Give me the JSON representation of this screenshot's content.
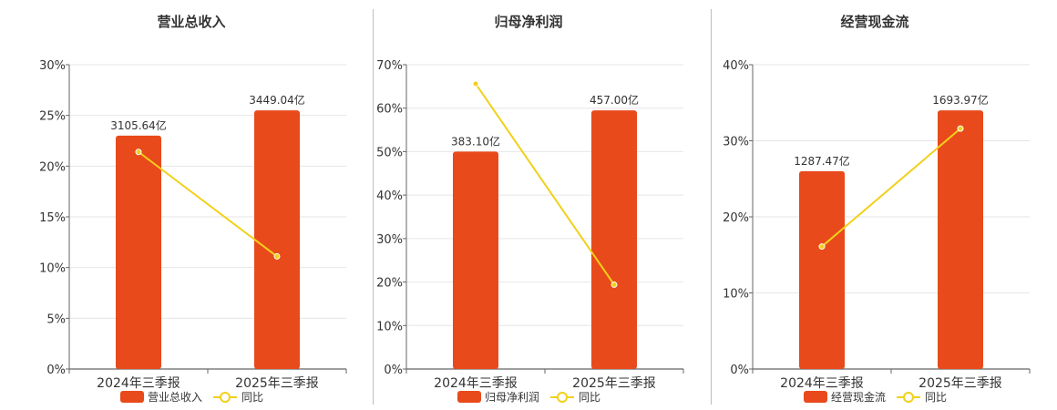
{
  "colors": {
    "bar": "#e84a1b",
    "line": "#f2d01a",
    "grid": "#e6e6e6",
    "axis": "#666666",
    "text": "#333333"
  },
  "chart_data": [
    {
      "type": "bar",
      "title": "营业总收入",
      "categories": [
        "2024年三季报",
        "2025年三季报"
      ],
      "ylim": [
        0,
        30
      ],
      "yticks": [
        "0%",
        "5%",
        "10%",
        "15%",
        "20%",
        "25%",
        "30%"
      ],
      "yvalues": [
        0,
        5,
        10,
        15,
        20,
        25,
        30
      ],
      "series": [
        {
          "name": "营业总收入",
          "type": "bar",
          "values": [
            23,
            25.5
          ],
          "labels": [
            "3105.64亿",
            "3449.04亿"
          ]
        },
        {
          "name": "同比",
          "type": "line",
          "values": [
            21.4,
            11.1
          ]
        }
      ],
      "grid": true,
      "legend": "bottom"
    },
    {
      "type": "bar",
      "title": "归母净利润",
      "categories": [
        "2024年三季报",
        "2025年三季报"
      ],
      "ylim": [
        0,
        70
      ],
      "yticks": [
        "0%",
        "10%",
        "20%",
        "30%",
        "40%",
        "50%",
        "60%",
        "70%"
      ],
      "yvalues": [
        0,
        10,
        20,
        30,
        40,
        50,
        60,
        70
      ],
      "series": [
        {
          "name": "归母净利润",
          "type": "bar",
          "values": [
            50,
            59.5
          ],
          "labels": [
            "383.10亿",
            "457.00亿"
          ]
        },
        {
          "name": "同比",
          "type": "line",
          "values": [
            65.6,
            19.4
          ]
        }
      ],
      "grid": true,
      "legend": "bottom"
    },
    {
      "type": "bar",
      "title": "经营现金流",
      "categories": [
        "2024年三季报",
        "2025年三季报"
      ],
      "ylim": [
        0,
        40
      ],
      "yticks": [
        "0%",
        "10%",
        "20%",
        "30%",
        "40%"
      ],
      "yvalues": [
        0,
        10,
        20,
        30,
        40
      ],
      "series": [
        {
          "name": "经营现金流",
          "type": "bar",
          "values": [
            26,
            34
          ],
          "labels": [
            "1287.47亿",
            "1693.97亿"
          ]
        },
        {
          "name": "同比",
          "type": "line",
          "values": [
            16.1,
            31.6
          ]
        }
      ],
      "grid": true,
      "legend": "bottom"
    }
  ]
}
